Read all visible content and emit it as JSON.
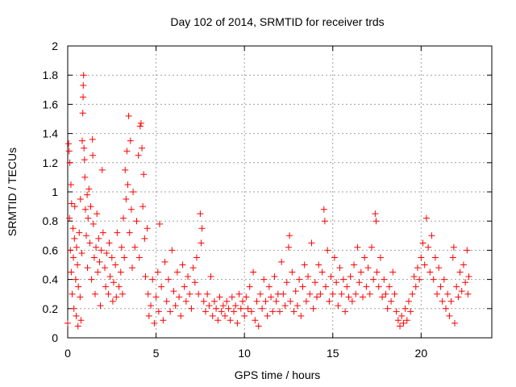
{
  "chart_data": {
    "type": "scatter",
    "title": "Day 102 of 2014, SRMTID for receiver trds",
    "xlabel": "GPS time / hours",
    "ylabel": "SRMTID / TECUs",
    "xlim": [
      0,
      24
    ],
    "ylim": [
      0,
      2
    ],
    "x_ticks": [
      0,
      5,
      10,
      15,
      20
    ],
    "x_tick_labels": [
      "0",
      "5",
      "10",
      "15",
      "20"
    ],
    "y_ticks": [
      0,
      0.2,
      0.4,
      0.6,
      0.8,
      1,
      1.2,
      1.4,
      1.6,
      1.8,
      2
    ],
    "y_tick_labels": [
      "0",
      "0.2",
      "0.4",
      "0.6",
      "0.8",
      "1",
      "1.2",
      "1.4",
      "1.6",
      "1.8",
      "2"
    ],
    "grid": true,
    "marker": "+",
    "series": [
      {
        "name": "SRMTID",
        "color": "#ff0000",
        "points": [
          [
            0.0,
            0.1
          ],
          [
            0.05,
            1.33
          ],
          [
            0.08,
            1.28
          ],
          [
            0.1,
            0.82
          ],
          [
            0.12,
            1.2
          ],
          [
            0.15,
            0.6
          ],
          [
            0.18,
            1.05
          ],
          [
            0.2,
            0.45
          ],
          [
            0.22,
            0.92
          ],
          [
            0.25,
            0.3
          ],
          [
            0.3,
            0.75
          ],
          [
            0.32,
            0.55
          ],
          [
            0.35,
            0.2
          ],
          [
            0.38,
            0.68
          ],
          [
            0.4,
            0.9
          ],
          [
            0.45,
            0.4
          ],
          [
            0.48,
            0.15
          ],
          [
            0.5,
            0.62
          ],
          [
            0.55,
            0.5
          ],
          [
            0.58,
            0.08
          ],
          [
            0.6,
            0.35
          ],
          [
            0.65,
            0.72
          ],
          [
            0.7,
            0.28
          ],
          [
            0.72,
            0.95
          ],
          [
            0.75,
            0.12
          ],
          [
            0.8,
            0.58
          ],
          [
            0.82,
            1.35
          ],
          [
            0.85,
            1.54
          ],
          [
            0.87,
            1.65
          ],
          [
            0.88,
            1.73
          ],
          [
            0.9,
            1.8
          ],
          [
            0.92,
            1.3
          ],
          [
            0.95,
            1.22
          ],
          [
            0.97,
            1.1
          ],
          [
            1.0,
            0.88
          ],
          [
            1.05,
            0.7
          ],
          [
            1.1,
            0.98
          ],
          [
            1.12,
            0.48
          ],
          [
            1.15,
            0.82
          ],
          [
            1.2,
            1.02
          ],
          [
            1.25,
            0.65
          ],
          [
            1.3,
            0.9
          ],
          [
            1.35,
            0.4
          ],
          [
            1.4,
            1.36
          ],
          [
            1.42,
            1.25
          ],
          [
            1.45,
            0.78
          ],
          [
            1.5,
            0.55
          ],
          [
            1.55,
            0.3
          ],
          [
            1.6,
            0.62
          ],
          [
            1.65,
            0.85
          ],
          [
            1.7,
            0.45
          ],
          [
            1.75,
            0.68
          ],
          [
            1.8,
            0.52
          ],
          [
            1.85,
            0.22
          ],
          [
            1.9,
            0.6
          ],
          [
            1.95,
            1.15
          ],
          [
            2.0,
            0.72
          ],
          [
            2.1,
            0.48
          ],
          [
            2.15,
            0.35
          ],
          [
            2.2,
            0.58
          ],
          [
            2.3,
            0.3
          ],
          [
            2.35,
            0.65
          ],
          [
            2.4,
            0.42
          ],
          [
            2.5,
            0.55
          ],
          [
            2.55,
            0.25
          ],
          [
            2.6,
            0.38
          ],
          [
            2.7,
            0.5
          ],
          [
            2.75,
            0.28
          ],
          [
            2.8,
            0.72
          ],
          [
            2.9,
            0.35
          ],
          [
            3.0,
            0.45
          ],
          [
            3.05,
            0.62
          ],
          [
            3.1,
            0.3
          ],
          [
            3.15,
            0.82
          ],
          [
            3.2,
            0.55
          ],
          [
            3.25,
            1.15
          ],
          [
            3.3,
            0.95
          ],
          [
            3.35,
            1.28
          ],
          [
            3.4,
            1.05
          ],
          [
            3.45,
            1.52
          ],
          [
            3.5,
            0.72
          ],
          [
            3.55,
            1.35
          ],
          [
            3.6,
            0.88
          ],
          [
            3.65,
            0.48
          ],
          [
            3.7,
            1.0
          ],
          [
            3.8,
            0.62
          ],
          [
            3.9,
            0.8
          ],
          [
            4.0,
            1.25
          ],
          [
            4.05,
            0.55
          ],
          [
            4.1,
            1.45
          ],
          [
            4.15,
            1.47
          ],
          [
            4.2,
            1.3
          ],
          [
            4.25,
            0.9
          ],
          [
            4.3,
            1.12
          ],
          [
            4.35,
            0.68
          ],
          [
            4.4,
            0.42
          ],
          [
            4.5,
            0.75
          ],
          [
            4.55,
            0.3
          ],
          [
            4.6,
            0.15
          ],
          [
            4.7,
            0.22
          ],
          [
            4.8,
            0.4
          ],
          [
            4.9,
            0.1
          ],
          [
            5.0,
            0.28
          ],
          [
            5.1,
            0.45
          ],
          [
            5.15,
            0.18
          ],
          [
            5.2,
            0.78
          ],
          [
            5.3,
            0.35
          ],
          [
            5.4,
            0.12
          ],
          [
            5.5,
            0.52
          ],
          [
            5.6,
            0.25
          ],
          [
            5.7,
            0.4
          ],
          [
            5.8,
            0.18
          ],
          [
            5.9,
            0.6
          ],
          [
            6.0,
            0.32
          ],
          [
            6.1,
            0.22
          ],
          [
            6.2,
            0.45
          ],
          [
            6.3,
            0.28
          ],
          [
            6.4,
            0.15
          ],
          [
            6.5,
            0.5
          ],
          [
            6.6,
            0.35
          ],
          [
            6.7,
            0.25
          ],
          [
            6.8,
            0.42
          ],
          [
            6.9,
            0.3
          ],
          [
            7.0,
            0.2
          ],
          [
            7.1,
            0.48
          ],
          [
            7.2,
            0.38
          ],
          [
            7.3,
            0.55
          ],
          [
            7.4,
            0.3
          ],
          [
            7.5,
            0.85
          ],
          [
            7.55,
            0.65
          ],
          [
            7.6,
            0.75
          ],
          [
            7.7,
            0.25
          ],
          [
            7.8,
            0.18
          ],
          [
            7.9,
            0.3
          ],
          [
            8.0,
            0.22
          ],
          [
            8.1,
            0.42
          ],
          [
            8.2,
            0.15
          ],
          [
            8.3,
            0.25
          ],
          [
            8.4,
            0.2
          ],
          [
            8.5,
            0.12
          ],
          [
            8.6,
            0.28
          ],
          [
            8.7,
            0.18
          ],
          [
            8.8,
            0.22
          ],
          [
            8.9,
            0.15
          ],
          [
            9.0,
            0.25
          ],
          [
            9.1,
            0.2
          ],
          [
            9.2,
            0.12
          ],
          [
            9.3,
            0.28
          ],
          [
            9.4,
            0.18
          ],
          [
            9.5,
            0.22
          ],
          [
            9.6,
            0.1
          ],
          [
            9.7,
            0.3
          ],
          [
            9.8,
            0.2
          ],
          [
            9.9,
            0.25
          ],
          [
            10.0,
            0.15
          ],
          [
            10.1,
            0.28
          ],
          [
            10.2,
            0.2
          ],
          [
            10.3,
            0.35
          ],
          [
            10.4,
            0.18
          ],
          [
            10.5,
            0.45
          ],
          [
            10.6,
            0.12
          ],
          [
            10.7,
            0.25
          ],
          [
            10.8,
            0.08
          ],
          [
            10.9,
            0.3
          ],
          [
            11.0,
            0.2
          ],
          [
            11.1,
            0.4
          ],
          [
            11.2,
            0.25
          ],
          [
            11.3,
            0.15
          ],
          [
            11.4,
            0.35
          ],
          [
            11.5,
            0.28
          ],
          [
            11.6,
            0.18
          ],
          [
            11.7,
            0.42
          ],
          [
            11.8,
            0.25
          ],
          [
            11.9,
            0.3
          ],
          [
            12.0,
            0.18
          ],
          [
            12.1,
            0.52
          ],
          [
            12.2,
            0.3
          ],
          [
            12.3,
            0.22
          ],
          [
            12.4,
            0.38
          ],
          [
            12.5,
            0.62
          ],
          [
            12.55,
            0.7
          ],
          [
            12.6,
            0.25
          ],
          [
            12.7,
            0.45
          ],
          [
            12.8,
            0.18
          ],
          [
            12.9,
            0.32
          ],
          [
            13.0,
            0.22
          ],
          [
            13.1,
            0.4
          ],
          [
            13.2,
            0.15
          ],
          [
            13.3,
            0.35
          ],
          [
            13.4,
            0.5
          ],
          [
            13.5,
            0.25
          ],
          [
            13.6,
            0.42
          ],
          [
            13.7,
            0.3
          ],
          [
            13.8,
            0.65
          ],
          [
            13.9,
            0.2
          ],
          [
            14.0,
            0.38
          ],
          [
            14.1,
            0.28
          ],
          [
            14.2,
            0.5
          ],
          [
            14.3,
            0.3
          ],
          [
            14.4,
            0.45
          ],
          [
            14.5,
            0.88
          ],
          [
            14.55,
            0.8
          ],
          [
            14.6,
            0.35
          ],
          [
            14.7,
            0.6
          ],
          [
            14.8,
            0.25
          ],
          [
            14.9,
            0.42
          ],
          [
            15.0,
            0.3
          ],
          [
            15.1,
            0.55
          ],
          [
            15.2,
            0.38
          ],
          [
            15.3,
            0.22
          ],
          [
            15.4,
            0.48
          ],
          [
            15.5,
            0.3
          ],
          [
            15.6,
            0.4
          ],
          [
            15.7,
            0.18
          ],
          [
            15.8,
            0.35
          ],
          [
            15.9,
            0.28
          ],
          [
            16.0,
            0.42
          ],
          [
            16.1,
            0.25
          ],
          [
            16.2,
            0.5
          ],
          [
            16.3,
            0.3
          ],
          [
            16.4,
            0.62
          ],
          [
            16.5,
            0.38
          ],
          [
            16.6,
            0.45
          ],
          [
            16.7,
            0.28
          ],
          [
            16.8,
            0.55
          ],
          [
            16.9,
            0.35
          ],
          [
            17.0,
            0.48
          ],
          [
            17.1,
            0.3
          ],
          [
            17.2,
            0.62
          ],
          [
            17.3,
            0.4
          ],
          [
            17.4,
            0.85
          ],
          [
            17.45,
            0.8
          ],
          [
            17.5,
            0.45
          ],
          [
            17.6,
            0.35
          ],
          [
            17.7,
            0.55
          ],
          [
            17.8,
            0.28
          ],
          [
            17.9,
            0.4
          ],
          [
            18.0,
            0.3
          ],
          [
            18.1,
            0.2
          ],
          [
            18.2,
            0.35
          ],
          [
            18.3,
            0.25
          ],
          [
            18.4,
            0.45
          ],
          [
            18.5,
            0.3
          ],
          [
            18.6,
            0.18
          ],
          [
            18.7,
            0.12
          ],
          [
            18.8,
            0.08
          ],
          [
            18.9,
            0.15
          ],
          [
            19.0,
            0.1
          ],
          [
            19.1,
            0.2
          ],
          [
            19.2,
            0.12
          ],
          [
            19.3,
            0.25
          ],
          [
            19.4,
            0.18
          ],
          [
            19.5,
            0.3
          ],
          [
            19.6,
            0.42
          ],
          [
            19.7,
            0.35
          ],
          [
            19.8,
            0.48
          ],
          [
            19.9,
            0.4
          ],
          [
            20.0,
            0.55
          ],
          [
            20.1,
            0.65
          ],
          [
            20.2,
            0.5
          ],
          [
            20.3,
            0.82
          ],
          [
            20.4,
            0.62
          ],
          [
            20.5,
            0.45
          ],
          [
            20.6,
            0.7
          ],
          [
            20.7,
            0.4
          ],
          [
            20.8,
            0.55
          ],
          [
            20.9,
            0.3
          ],
          [
            21.0,
            0.48
          ],
          [
            21.1,
            0.35
          ],
          [
            21.2,
            0.25
          ],
          [
            21.3,
            0.4
          ],
          [
            21.4,
            0.2
          ],
          [
            21.5,
            0.3
          ],
          [
            21.6,
            0.15
          ],
          [
            21.7,
            0.25
          ],
          [
            21.8,
            0.55
          ],
          [
            21.85,
            0.62
          ],
          [
            21.9,
            0.1
          ],
          [
            22.0,
            0.35
          ],
          [
            22.1,
            0.28
          ],
          [
            22.2,
            0.45
          ],
          [
            22.3,
            0.32
          ],
          [
            22.4,
            0.5
          ],
          [
            22.5,
            0.38
          ],
          [
            22.6,
            0.6
          ],
          [
            22.65,
            0.3
          ],
          [
            22.7,
            0.42
          ]
        ]
      }
    ]
  }
}
